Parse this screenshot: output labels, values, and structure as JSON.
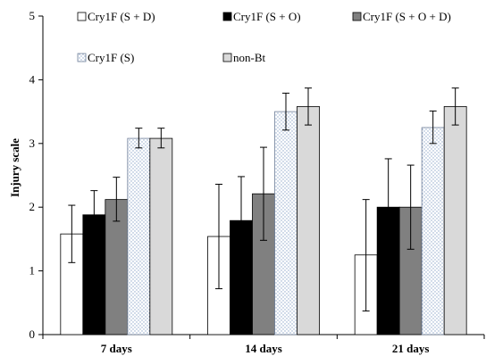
{
  "chart_data": {
    "type": "bar",
    "title": "",
    "xlabel": "",
    "ylabel": "Injury scale",
    "ylim": [
      0,
      5
    ],
    "yticks": [
      0,
      1,
      2,
      3,
      4,
      5
    ],
    "grid": false,
    "legend_position": "top",
    "categories": [
      "7 days",
      "14 days",
      "21 days"
    ],
    "series": [
      {
        "name": "Cry1F (S + D)",
        "fill": "#ffffff",
        "pattern": "none",
        "values": [
          1.58,
          1.54,
          1.25
        ],
        "err_low": [
          1.13,
          0.72,
          0.37
        ],
        "err_high": [
          2.03,
          2.36,
          2.12
        ]
      },
      {
        "name": "Cry1F (S + O)",
        "fill": "#000000",
        "pattern": "none",
        "values": [
          1.88,
          1.79,
          2.0
        ],
        "err_low": [
          1.49,
          1.09,
          1.23
        ],
        "err_high": [
          2.26,
          2.48,
          2.76
        ]
      },
      {
        "name": "Cry1F (S + O + D)",
        "fill": "#808080",
        "pattern": "none",
        "values": [
          2.12,
          2.21,
          2.0
        ],
        "err_low": [
          1.78,
          1.48,
          1.34
        ],
        "err_high": [
          2.47,
          2.94,
          2.66
        ]
      },
      {
        "name": "Cry1F (S)",
        "fill": "#ffffff",
        "pattern": "dotted",
        "values": [
          3.08,
          3.5,
          3.25
        ],
        "err_low": [
          2.93,
          3.21,
          3.0
        ],
        "err_high": [
          3.24,
          3.79,
          3.51
        ]
      },
      {
        "name": "non-Bt",
        "fill": "#d9d9d9",
        "pattern": "none",
        "values": [
          3.08,
          3.58,
          3.58
        ],
        "err_low": [
          2.93,
          3.29,
          3.29
        ],
        "err_high": [
          3.24,
          3.87,
          3.87
        ]
      }
    ]
  }
}
